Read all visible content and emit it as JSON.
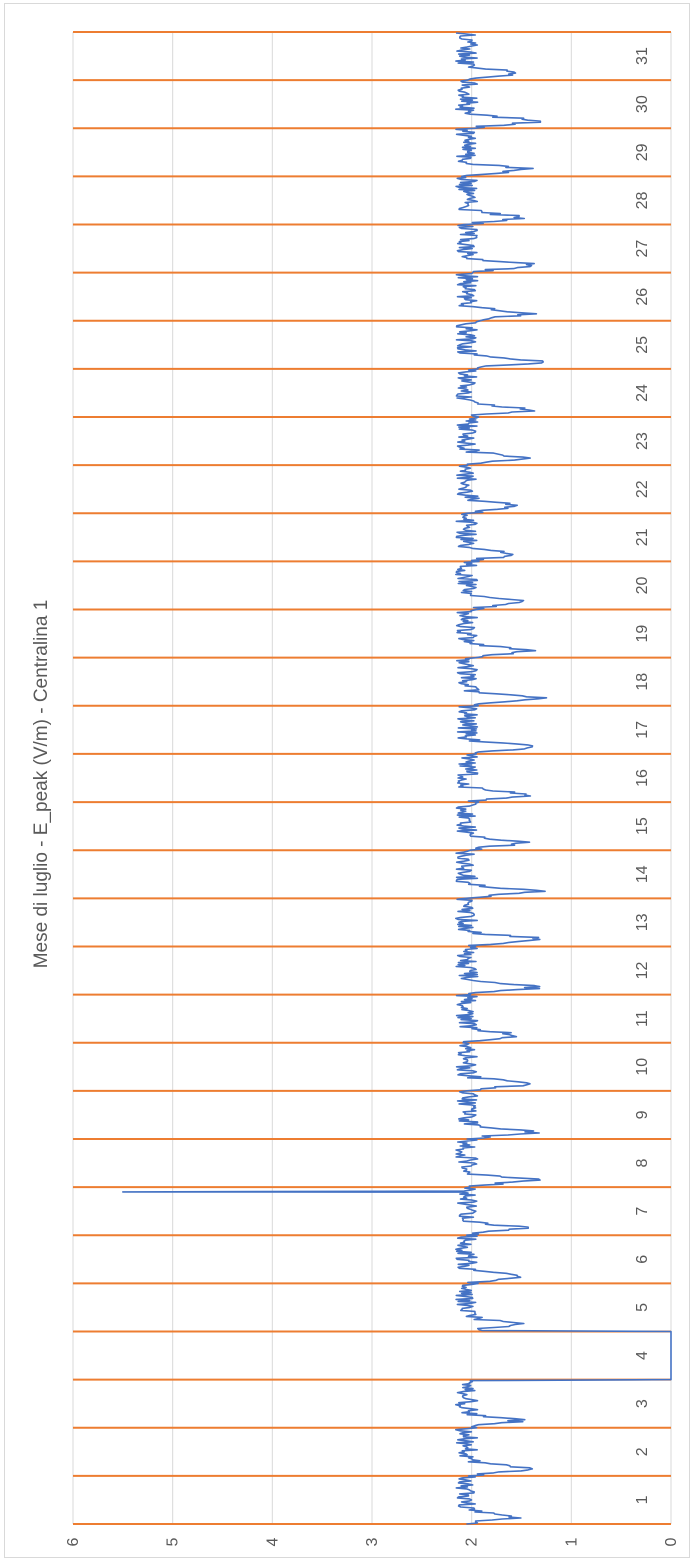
{
  "chart_data": {
    "type": "line",
    "orientation": "rotated-90-clockwise",
    "title": "Mese di luglio - E_peak (V/m) - Centralina 1",
    "ylim": [
      0,
      6
    ],
    "y_ticks": [
      "0",
      "1",
      "2",
      "3",
      "4",
      "5",
      "6"
    ],
    "categories": [
      "1",
      "2",
      "3",
      "4",
      "5",
      "6",
      "7",
      "8",
      "9",
      "10",
      "11",
      "12",
      "13",
      "14",
      "15",
      "16",
      "17",
      "18",
      "19",
      "20",
      "21",
      "22",
      "23",
      "24",
      "25",
      "26",
      "27",
      "28",
      "29",
      "30",
      "31"
    ],
    "grid": true,
    "day_separators": {
      "color": "#ED7D31"
    },
    "series": [
      {
        "color": "#4472C4",
        "daily_profile": {
          "night_level": 2.05,
          "min_values": [
            1.45,
            1.3,
            1.45,
            0.0,
            1.4,
            1.4,
            1.4,
            1.25,
            1.25,
            1.35,
            1.4,
            1.25,
            1.15,
            1.25,
            1.4,
            1.3,
            1.25,
            1.2,
            1.3,
            1.4,
            1.45,
            1.45,
            1.4,
            1.3,
            1.15,
            1.35,
            1.2,
            1.45,
            1.35,
            1.2,
            1.4
          ]
        },
        "outage": {
          "from_day": 3.5,
          "to_day": 4.25,
          "value": 0
        },
        "spike": {
          "day": 7.9,
          "value": 5.5
        }
      }
    ]
  }
}
